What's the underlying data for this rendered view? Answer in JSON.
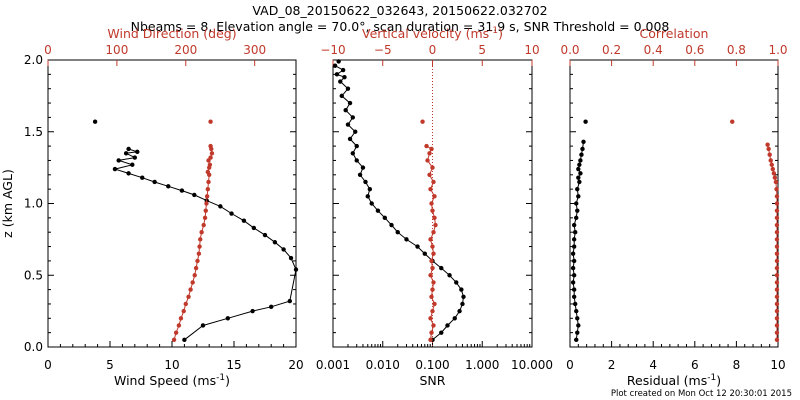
{
  "figure": {
    "title": "VAD_08_20150622_032643, 20150622.032702",
    "subtitle": "Nbeams = 8, Elevation angle = 70.0°, scan duration = 31.9 s, SNR Threshold = 0.008",
    "credit": "Plot created on Mon Oct 12 20:30:01 2015"
  },
  "colors": {
    "primary": "#000000",
    "secondary": "#c0392b"
  },
  "chart_data": [
    {
      "type": "line",
      "title": "",
      "ylabel": "z (km AGL)",
      "ylim": [
        0,
        2.0
      ],
      "yticks": [
        "0.0",
        "0.5",
        "1.0",
        "1.5",
        "2.0"
      ],
      "bottom_axis": {
        "label": "Wind Speed (ms",
        "sup": "-1",
        "suffix": ")",
        "lim": [
          0,
          20
        ],
        "ticks": [
          "0",
          "5",
          "10",
          "15",
          "20"
        ],
        "scale": "linear"
      },
      "top_axis": {
        "label": "Wind Direction (deg)",
        "lim": [
          0,
          360
        ],
        "ticks": [
          "0",
          "100",
          "200",
          "300"
        ],
        "tick_values": [
          0,
          100,
          200,
          300
        ],
        "scale": "linear"
      },
      "series": [
        {
          "axis": "bottom",
          "color": "#000000",
          "x": [
            11.0,
            12.5,
            14.5,
            16.5,
            18.0,
            19.5,
            20.0,
            19.6,
            19.0,
            18.3,
            17.5,
            16.6,
            15.8,
            14.8,
            13.9,
            12.8,
            11.8,
            10.8,
            9.7,
            8.6,
            7.6,
            6.5,
            5.4,
            6.8,
            5.7,
            7.0,
            6.3,
            7.2,
            6.5,
            3.8
          ],
          "y": [
            0.05,
            0.15,
            0.2,
            0.25,
            0.28,
            0.32,
            0.54,
            0.62,
            0.68,
            0.73,
            0.78,
            0.83,
            0.88,
            0.93,
            0.98,
            1.02,
            1.06,
            1.09,
            1.12,
            1.15,
            1.18,
            1.21,
            1.24,
            1.27,
            1.3,
            1.32,
            1.35,
            1.36,
            1.38,
            1.57
          ]
        },
        {
          "axis": "top",
          "color": "#c0392b",
          "x": [
            183,
            186,
            190,
            193,
            197,
            200,
            204,
            207,
            210,
            213,
            215,
            217,
            219,
            220,
            221,
            223,
            226,
            228,
            229,
            230,
            231,
            232,
            233,
            234,
            232,
            234,
            235,
            233,
            236,
            238,
            237,
            236,
            236
          ],
          "y": [
            0.05,
            0.1,
            0.15,
            0.2,
            0.25,
            0.3,
            0.35,
            0.4,
            0.45,
            0.5,
            0.55,
            0.6,
            0.65,
            0.7,
            0.75,
            0.8,
            0.85,
            0.9,
            0.95,
            1.0,
            1.05,
            1.1,
            1.15,
            1.2,
            1.22,
            1.25,
            1.27,
            1.3,
            1.32,
            1.35,
            1.38,
            1.4,
            1.57
          ]
        }
      ]
    },
    {
      "type": "line",
      "title": "",
      "ylim": [
        0,
        2.0
      ],
      "bottom_axis": {
        "label": "SNR",
        "lim": [
          0.001,
          10
        ],
        "ticks": [
          "0.001",
          "0.010",
          "0.100",
          "1.000",
          "10.000"
        ],
        "scale": "log"
      },
      "top_axis": {
        "label": "Vertical velocity (ms",
        "sup": "-1",
        "suffix": ")",
        "lim": [
          -10,
          10
        ],
        "ticks": [
          "−10",
          "−5",
          "0",
          "5",
          "10"
        ],
        "tick_values": [
          -10,
          -5,
          0,
          5,
          10
        ],
        "scale": "linear",
        "zero_line": true
      },
      "series": [
        {
          "axis": "bottom",
          "color": "#000000",
          "x": [
            0.1,
            0.15,
            0.2,
            0.28,
            0.35,
            0.4,
            0.42,
            0.38,
            0.3,
            0.22,
            0.15,
            0.1,
            0.07,
            0.05,
            0.03,
            0.02,
            0.015,
            0.011,
            0.008,
            0.006,
            0.005,
            0.0055,
            0.0045,
            0.0035,
            0.004,
            0.003,
            0.0025,
            0.003,
            0.0022,
            0.0028,
            0.002,
            0.0025,
            0.0018,
            0.0022,
            0.0015,
            0.002,
            0.0014,
            0.0017,
            0.0012,
            0.0016,
            0.0011,
            0.0013
          ],
          "y": [
            0.05,
            0.1,
            0.15,
            0.2,
            0.25,
            0.3,
            0.35,
            0.4,
            0.45,
            0.5,
            0.55,
            0.6,
            0.65,
            0.7,
            0.75,
            0.8,
            0.85,
            0.9,
            0.95,
            1.0,
            1.05,
            1.1,
            1.15,
            1.2,
            1.25,
            1.3,
            1.35,
            1.4,
            1.45,
            1.5,
            1.55,
            1.6,
            1.65,
            1.7,
            1.75,
            1.8,
            1.85,
            1.88,
            1.9,
            1.93,
            1.96,
            1.99
          ]
        },
        {
          "axis": "top",
          "color": "#c0392b",
          "x": [
            -0.2,
            -0.1,
            0.1,
            -0.2,
            0.0,
            0.2,
            -0.1,
            0.0,
            0.1,
            -0.2,
            0.0,
            -0.1,
            0.1,
            0.0,
            -0.2,
            0.1,
            0.3,
            0.2,
            0.0,
            -0.1,
            0.2,
            -0.2,
            0.1,
            -0.3,
            0.0,
            -0.5,
            -0.3,
            -0.1,
            -0.6,
            -1.0
          ],
          "y": [
            0.05,
            0.1,
            0.15,
            0.2,
            0.25,
            0.3,
            0.35,
            0.4,
            0.45,
            0.5,
            0.55,
            0.6,
            0.65,
            0.7,
            0.75,
            0.8,
            0.85,
            0.9,
            0.95,
            1.0,
            1.05,
            1.1,
            1.15,
            1.2,
            1.25,
            1.3,
            1.35,
            1.38,
            1.4,
            1.57
          ]
        }
      ]
    },
    {
      "type": "line",
      "title": "",
      "ylim": [
        0,
        2.0
      ],
      "bottom_axis": {
        "label": "Residual (ms",
        "sup": "-1",
        "suffix": ")",
        "lim": [
          0,
          10
        ],
        "ticks": [
          "0",
          "2",
          "4",
          "6",
          "8",
          "10"
        ],
        "scale": "linear"
      },
      "top_axis": {
        "label": "Correlation",
        "lim": [
          0,
          1.0
        ],
        "ticks": [
          "0.0",
          "0.2",
          "0.4",
          "0.6",
          "0.8",
          "1.0"
        ],
        "tick_values": [
          0,
          0.2,
          0.4,
          0.6,
          0.8,
          1.0
        ],
        "scale": "linear"
      },
      "series": [
        {
          "axis": "bottom",
          "color": "#000000",
          "x": [
            0.3,
            0.35,
            0.4,
            0.35,
            0.3,
            0.25,
            0.2,
            0.2,
            0.15,
            0.2,
            0.15,
            0.2,
            0.15,
            0.2,
            0.2,
            0.25,
            0.2,
            0.3,
            0.35,
            0.3,
            0.4,
            0.35,
            0.45,
            0.4,
            0.5,
            0.4,
            0.45,
            0.5,
            0.55,
            0.6,
            0.65,
            0.75
          ],
          "y": [
            0.05,
            0.1,
            0.15,
            0.2,
            0.25,
            0.3,
            0.35,
            0.4,
            0.45,
            0.5,
            0.55,
            0.6,
            0.65,
            0.7,
            0.75,
            0.8,
            0.85,
            0.9,
            0.95,
            1.0,
            1.05,
            1.1,
            1.15,
            1.18,
            1.21,
            1.24,
            1.27,
            1.3,
            1.34,
            1.38,
            1.43,
            1.57
          ]
        },
        {
          "axis": "top",
          "color": "#c0392b",
          "x": [
            0.995,
            0.995,
            0.995,
            0.995,
            0.995,
            0.995,
            0.995,
            0.995,
            0.995,
            0.995,
            0.995,
            0.995,
            0.995,
            0.995,
            0.995,
            0.995,
            0.995,
            0.995,
            0.995,
            0.995,
            0.995,
            0.993,
            0.99,
            0.985,
            0.98,
            0.975,
            0.97,
            0.965,
            0.96,
            0.955,
            0.95,
            0.78
          ],
          "y": [
            0.05,
            0.1,
            0.15,
            0.2,
            0.25,
            0.3,
            0.35,
            0.4,
            0.45,
            0.5,
            0.55,
            0.6,
            0.65,
            0.7,
            0.75,
            0.8,
            0.85,
            0.9,
            0.95,
            1.0,
            1.05,
            1.1,
            1.15,
            1.18,
            1.21,
            1.24,
            1.27,
            1.3,
            1.34,
            1.38,
            1.41,
            1.57
          ]
        }
      ]
    }
  ]
}
